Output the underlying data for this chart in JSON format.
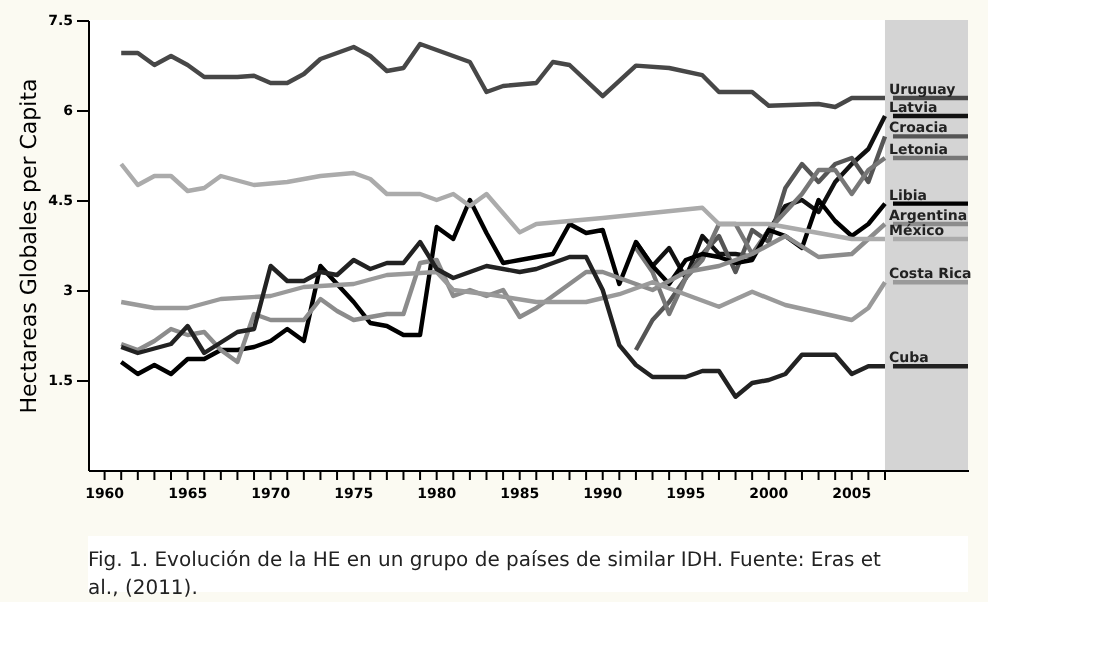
{
  "chart_data": {
    "type": "line",
    "ylabel": "Hectareas Globales per Capita",
    "xlim": [
      1959,
      2012
    ],
    "ylim": [
      0,
      7.5
    ],
    "yticks": [
      1.5,
      3,
      4.5,
      6,
      7.5
    ],
    "xticks": [
      1960,
      {
        "value": 1961,
        "label": null
      },
      {
        "value": 1962,
        "label": null
      },
      {
        "value": 1963,
        "label": null
      },
      {
        "value": 1964,
        "label": null
      },
      1965,
      {
        "value": 1966,
        "label": null
      },
      {
        "value": 1967,
        "label": null
      },
      {
        "value": 1968,
        "label": null
      },
      {
        "value": 1969,
        "label": null
      },
      1970,
      {
        "value": 1971,
        "label": null
      },
      {
        "value": 1972,
        "label": null
      },
      {
        "value": 1973,
        "label": null
      },
      {
        "value": 1974,
        "label": null
      },
      1975,
      {
        "value": 1976,
        "label": null
      },
      {
        "value": 1977,
        "label": null
      },
      {
        "value": 1978,
        "label": null
      },
      {
        "value": 1979,
        "label": null
      },
      1980,
      {
        "value": 1981,
        "label": null
      },
      {
        "value": 1982,
        "label": null
      },
      {
        "value": 1983,
        "label": null
      },
      {
        "value": 1984,
        "label": null
      },
      1985,
      {
        "value": 1986,
        "label": null
      },
      {
        "value": 1987,
        "label": null
      },
      {
        "value": 1988,
        "label": null
      },
      {
        "value": 1989,
        "label": null
      },
      1990,
      {
        "value": 1991,
        "label": null
      },
      {
        "value": 1992,
        "label": null
      },
      {
        "value": 1993,
        "label": null
      },
      {
        "value": 1994,
        "label": null
      },
      1995,
      {
        "value": 1996,
        "label": null
      },
      {
        "value": 1997,
        "label": null
      },
      {
        "value": 1998,
        "label": null
      },
      {
        "value": 1999,
        "label": null
      },
      2000,
      {
        "value": 2001,
        "label": null
      },
      {
        "value": 2002,
        "label": null
      },
      {
        "value": 2003,
        "label": null
      },
      {
        "value": 2004,
        "label": null
      },
      2005,
      {
        "value": 2006,
        "label": null
      },
      {
        "value": 2007,
        "label": null
      }
    ],
    "grid": false,
    "legend": false,
    "line_style": "solid",
    "marker": "none",
    "bands": [
      {
        "axis": "x",
        "from": 2007,
        "to": 2012,
        "color": "#d4d4d4"
      }
    ],
    "annotations": [
      "Fig. 1. Evolución de la HE en un grupo de países de similar IDH. Fuente: Eras et al., (2011)."
    ],
    "series": [
      {
        "name": "Uruguay",
        "color": "#474747",
        "x": [
          1961,
          1962,
          1963,
          1964,
          1965,
          1966,
          1968,
          1969,
          1970,
          1971,
          1972,
          1973,
          1975,
          1976,
          1977,
          1978,
          1979,
          1981,
          1982,
          1983,
          1984,
          1986,
          1987,
          1988,
          1990,
          1992,
          1994,
          1996,
          1997,
          1999,
          2000,
          2003,
          2004,
          2005,
          2007
        ],
        "values": [
          6.95,
          6.95,
          6.75,
          6.9,
          6.75,
          6.55,
          6.55,
          6.57,
          6.45,
          6.45,
          6.6,
          6.85,
          7.05,
          6.9,
          6.65,
          6.7,
          7.1,
          6.9,
          6.8,
          6.3,
          6.4,
          6.45,
          6.8,
          6.75,
          6.23,
          6.74,
          6.7,
          6.58,
          6.3,
          6.3,
          6.07,
          6.1,
          6.05,
          6.2,
          6.2
        ]
      },
      {
        "name": "Latvia",
        "color": "#111111",
        "x": [
          1992,
          1993,
          1994,
          1995,
          1996,
          1997,
          1998,
          1999,
          2000,
          2001,
          2002,
          2003,
          2004,
          2005,
          2006,
          2007
        ],
        "values": [
          3.8,
          3.4,
          3.7,
          3.2,
          3.9,
          3.6,
          3.6,
          3.55,
          4.0,
          4.4,
          4.5,
          4.3,
          4.8,
          5.1,
          5.35,
          5.9
        ]
      },
      {
        "name": "Croacia",
        "color": "#555555",
        "x": [
          1992,
          1993,
          1994,
          1995,
          1996,
          1997,
          1998,
          1999,
          2000,
          2001,
          2002,
          2003,
          2004,
          2005,
          2006,
          2007
        ],
        "values": [
          2.0,
          2.5,
          2.8,
          3.2,
          3.6,
          3.9,
          3.3,
          4.0,
          3.8,
          4.7,
          5.1,
          4.8,
          5.1,
          5.2,
          4.8,
          5.56
        ]
      },
      {
        "name": "Letonia",
        "color": "#777777",
        "x": [
          1992,
          1993,
          1994,
          1995,
          1996,
          1997,
          1998,
          1999,
          2000,
          2001,
          2002,
          2003,
          2004,
          2005,
          2006,
          2007
        ],
        "values": [
          3.7,
          3.3,
          2.6,
          3.2,
          3.5,
          4.1,
          4.1,
          3.6,
          4.0,
          4.3,
          4.6,
          5.0,
          5.0,
          4.6,
          5.0,
          5.2
        ]
      },
      {
        "name": "Libia",
        "color": "#000000",
        "x": [
          1961,
          1962,
          1963,
          1964,
          1965,
          1966,
          1967,
          1968,
          1969,
          1970,
          1971,
          1972,
          1973,
          1974,
          1975,
          1976,
          1977,
          1978,
          1979,
          1980,
          1981,
          1982,
          1983,
          1984,
          1985,
          1986,
          1987,
          1988,
          1989,
          1990,
          1991,
          1992,
          1993,
          1994,
          1995,
          1996,
          1997,
          1998,
          1999,
          2000,
          2001,
          2002,
          2003,
          2004,
          2005,
          2006,
          2007
        ],
        "values": [
          1.8,
          1.6,
          1.75,
          1.6,
          1.85,
          1.85,
          2.0,
          2.0,
          2.05,
          2.15,
          2.35,
          2.15,
          3.4,
          3.1,
          2.8,
          2.45,
          2.4,
          2.25,
          2.25,
          4.05,
          3.85,
          4.5,
          3.95,
          3.45,
          3.5,
          3.55,
          3.6,
          4.1,
          3.95,
          4.0,
          3.1,
          3.8,
          3.4,
          3.1,
          3.5,
          3.6,
          3.55,
          3.45,
          3.5,
          4.0,
          3.9,
          3.7,
          4.5,
          4.15,
          3.9,
          4.1,
          4.44
        ]
      },
      {
        "name": "Argentina",
        "color": "#8c8c8c",
        "x": [
          1961,
          1962,
          1963,
          1964,
          1965,
          1966,
          1967,
          1968,
          1969,
          1970,
          1972,
          1973,
          1974,
          1975,
          1977,
          1978,
          1979,
          1980,
          1981,
          1982,
          1983,
          1984,
          1985,
          1986,
          1987,
          1988,
          1989,
          1990,
          1991,
          1993,
          1995,
          1997,
          1999,
          2001,
          2003,
          2005,
          2007
        ],
        "values": [
          2.1,
          2.0,
          2.15,
          2.35,
          2.25,
          2.3,
          2.0,
          1.8,
          2.6,
          2.5,
          2.5,
          2.85,
          2.65,
          2.5,
          2.6,
          2.6,
          3.45,
          3.5,
          2.9,
          3.0,
          2.9,
          3.0,
          2.55,
          2.7,
          2.9,
          3.1,
          3.3,
          3.3,
          3.2,
          3.0,
          3.3,
          3.4,
          3.6,
          3.9,
          3.55,
          3.6,
          4.1
        ]
      },
      {
        "name": "México",
        "color": "#ababab",
        "x": [
          1961,
          1962,
          1963,
          1964,
          1965,
          1966,
          1967,
          1969,
          1971,
          1973,
          1975,
          1976,
          1977,
          1979,
          1980,
          1981,
          1982,
          1983,
          1985,
          1986,
          1990,
          1996,
          1997,
          2000,
          2005,
          2007
        ],
        "values": [
          5.1,
          4.75,
          4.9,
          4.9,
          4.65,
          4.7,
          4.9,
          4.75,
          4.8,
          4.9,
          4.95,
          4.85,
          4.6,
          4.6,
          4.5,
          4.6,
          4.4,
          4.6,
          3.96,
          4.1,
          4.2,
          4.37,
          4.1,
          4.1,
          3.85,
          3.85
        ]
      },
      {
        "name": "Costa Rica",
        "color": "#9a9a9a",
        "x": [
          1961,
          1963,
          1965,
          1967,
          1970,
          1972,
          1975,
          1977,
          1980,
          1981,
          1983,
          1986,
          1989,
          1991,
          1993,
          1997,
          1999,
          2001,
          2005,
          2006,
          2007
        ],
        "values": [
          2.8,
          2.7,
          2.7,
          2.85,
          2.9,
          3.05,
          3.1,
          3.25,
          3.3,
          3.0,
          2.93,
          2.8,
          2.8,
          2.93,
          3.13,
          2.72,
          2.97,
          2.75,
          2.5,
          2.7,
          3.13
        ]
      },
      {
        "name": "Cuba",
        "color": "#222222",
        "x": [
          1961,
          1962,
          1964,
          1965,
          1966,
          1968,
          1969,
          1970,
          1971,
          1972,
          1973,
          1974,
          1975,
          1976,
          1977,
          1978,
          1979,
          1980,
          1981,
          1982,
          1983,
          1985,
          1986,
          1988,
          1989,
          1990,
          1991,
          1992,
          1993,
          1995,
          1996,
          1997,
          1998,
          1999,
          2000,
          2001,
          2002,
          2003,
          2004,
          2005,
          2006,
          2007
        ],
        "values": [
          2.05,
          1.95,
          2.1,
          2.4,
          1.95,
          2.3,
          2.35,
          3.4,
          3.15,
          3.15,
          3.3,
          3.25,
          3.5,
          3.35,
          3.45,
          3.45,
          3.8,
          3.35,
          3.2,
          3.3,
          3.4,
          3.3,
          3.35,
          3.55,
          3.55,
          3.0,
          2.08,
          1.75,
          1.55,
          1.55,
          1.65,
          1.65,
          1.22,
          1.45,
          1.5,
          1.6,
          1.92,
          1.92,
          1.92,
          1.6,
          1.73,
          1.73
        ]
      }
    ]
  }
}
